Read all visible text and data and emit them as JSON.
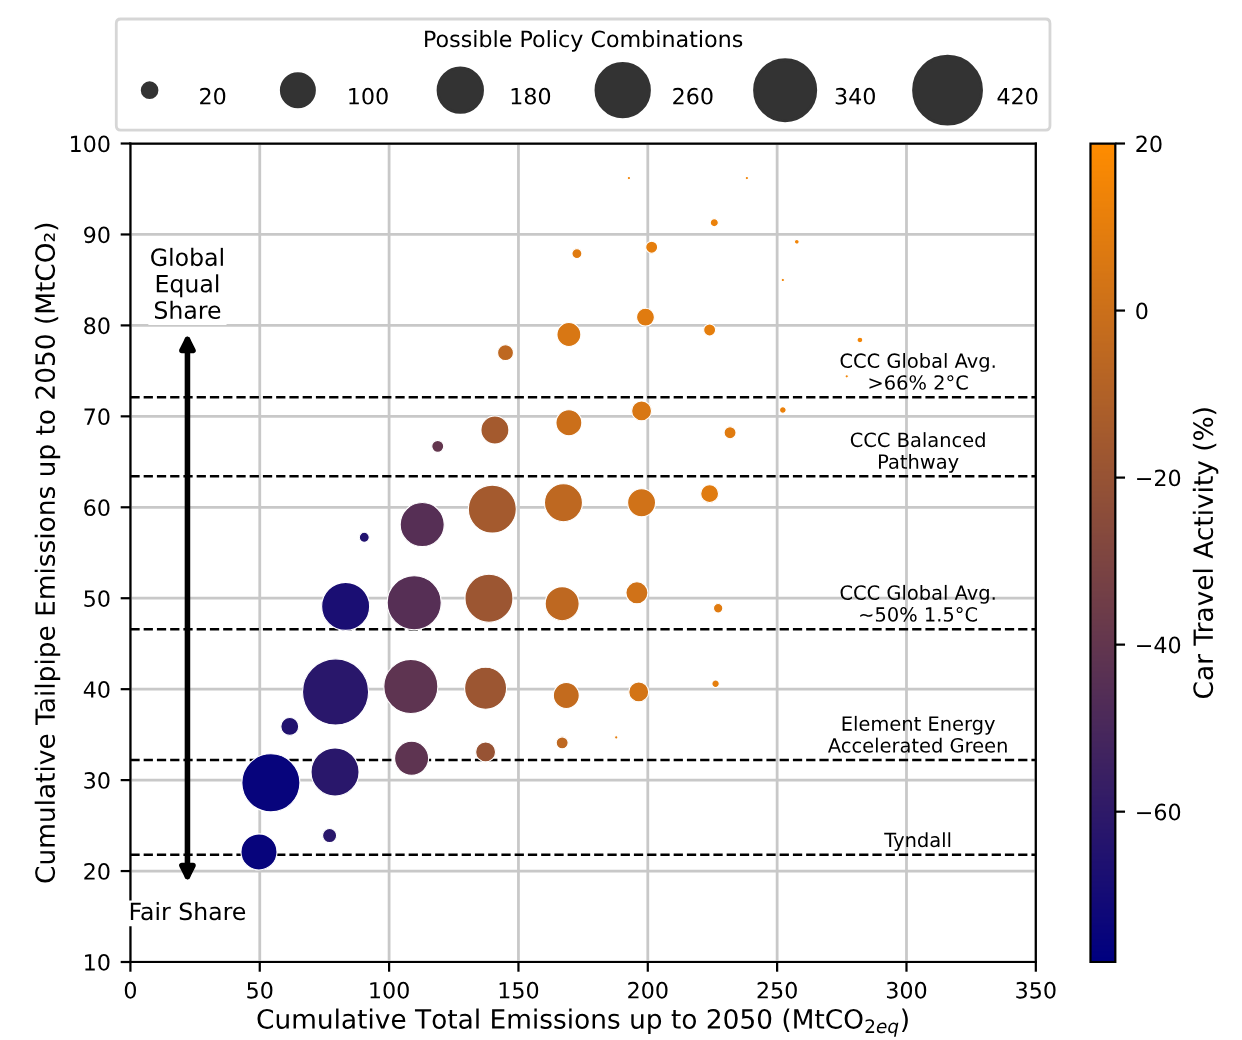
{
  "chart_data": {
    "type": "bubble",
    "xlabel": "Cumulative Total Emissions up to 2050 (MtCO$_{2eq}$)",
    "ylabel": "Cumulative Tailpipe Emissions up to 2050 (MtCO₂)",
    "clabel": "Car Travel Activity (%)",
    "legend_title": "Possible Policy Combinations",
    "size_legend": [
      20,
      100,
      180,
      260,
      340,
      420
    ],
    "x": [
      192.7,
      238.3,
      225.7,
      172.6,
      201.5,
      257.6,
      252.2,
      169.5,
      199.1,
      223.9,
      145,
      282,
      276.9,
      140.9,
      169.5,
      197.6,
      252.2,
      231.8,
      118.8,
      139.9,
      167.4,
      197.6,
      223.9,
      112.8,
      90.4,
      83.2,
      109.7,
      138.6,
      166.9,
      195.8,
      227.2,
      79.3,
      108.4,
      137.3,
      168.5,
      196.5,
      226.2,
      61.6,
      54.3,
      79.1,
      108.7,
      137.3,
      166.9,
      187.8,
      77.0,
      49.7
    ],
    "values": [
      96.2,
      96.2,
      91.3,
      87.9,
      88.6,
      89.2,
      85.0,
      79.0,
      80.9,
      79.5,
      77.0,
      78.4,
      74.4,
      68.5,
      69.3,
      70.6,
      70.7,
      68.2,
      66.7,
      59.8,
      60.5,
      60.5,
      61.5,
      58.1,
      56.7,
      49.1,
      49.5,
      50.0,
      49.4,
      50.6,
      48.9,
      39.7,
      40.3,
      40.1,
      39.3,
      39.7,
      40.6,
      35.9,
      29.7,
      30.9,
      32.4,
      33.1,
      34.1,
      34.7,
      23.9,
      22.1
    ],
    "sizes": [
      1,
      1,
      6,
      9,
      13,
      2,
      1,
      52,
      29,
      13,
      23,
      3,
      1,
      71,
      61,
      36,
      4,
      13,
      13,
      209,
      131,
      71,
      29,
      176,
      9,
      209,
      265,
      209,
      105,
      44,
      8,
      396,
      265,
      160,
      61,
      36,
      5,
      29,
      306,
      209,
      105,
      36,
      13,
      1,
      18,
      118
    ],
    "cvalues": [
      15,
      15,
      12,
      8,
      10,
      15,
      15,
      5,
      8,
      10,
      -5,
      15,
      15,
      -15,
      0,
      5,
      12,
      8,
      -40,
      -15,
      -5,
      2,
      8,
      -45,
      -65,
      -68,
      -45,
      -18,
      -5,
      2,
      8,
      -62,
      -42,
      -18,
      -3,
      3,
      10,
      -65,
      -75,
      -62,
      -42,
      -20,
      -5,
      10,
      -62,
      -75
    ],
    "clim": [
      -78,
      20
    ],
    "cticks": [
      -60,
      -40,
      -20,
      0,
      20
    ],
    "xlim": [
      0,
      350
    ],
    "xticks": [
      0,
      50,
      100,
      150,
      200,
      250,
      300,
      350
    ],
    "ylim": [
      10,
      100
    ],
    "yticks": [
      10,
      20,
      30,
      40,
      50,
      60,
      70,
      80,
      90,
      100
    ],
    "grid": true,
    "ref_lines": [
      {
        "axis": "y",
        "value": 72.1,
        "label": "CCC Global Avg.\n>66% 2°C",
        "color": "#000000",
        "line_style": "dashed"
      },
      {
        "axis": "y",
        "value": 63.4,
        "label": "CCC Balanced\nPathway",
        "color": "#000000",
        "line_style": "dashed"
      },
      {
        "axis": "y",
        "value": 46.6,
        "label": "CCC Global Avg.\n~50% 1.5°C",
        "color": "#000000",
        "line_style": "dashed"
      },
      {
        "axis": "y",
        "value": 32.2,
        "label": "Element Energy\nAccelerated Green",
        "color": "#000000",
        "line_style": "dashed"
      },
      {
        "axis": "y",
        "value": 21.8,
        "label": "Tyndall",
        "color": "#000000",
        "line_style": "dashed"
      }
    ],
    "annotations": [
      "Global\nEqual\nShare",
      "Fair Share"
    ]
  }
}
